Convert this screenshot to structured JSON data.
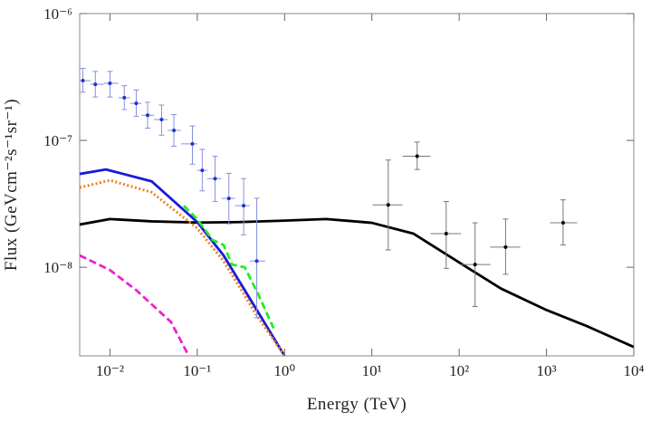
{
  "chart_data": {
    "type": "line",
    "x_label": "Energy (TeV)",
    "y_label": "Flux (GeVcm⁻²s⁻¹sr⁻¹)",
    "xscale": "log",
    "yscale": "log",
    "xlim": [
      0.0045,
      10000
    ],
    "ylim": [
      2e-09,
      1e-06
    ],
    "xticks": [
      {
        "value": 0.01,
        "label": "10⁻²"
      },
      {
        "value": 0.1,
        "label": "10⁻¹"
      },
      {
        "value": 1,
        "label": "10⁰"
      },
      {
        "value": 10,
        "label": "10¹"
      },
      {
        "value": 100,
        "label": "10²"
      },
      {
        "value": 1000,
        "label": "10³"
      },
      {
        "value": 10000,
        "label": "10⁴"
      }
    ],
    "yticks": [
      {
        "value": 1e-08,
        "label": "10⁻⁸"
      },
      {
        "value": 1e-07,
        "label": "10⁻⁷"
      },
      {
        "value": 1e-06,
        "label": "10⁻⁶"
      }
    ],
    "grid": false,
    "series": [
      {
        "color": "#000000",
        "style": "solid",
        "x": [
          0.0045,
          0.01,
          0.03,
          0.1,
          0.3,
          1,
          3,
          10,
          30,
          100,
          300,
          1000,
          3000,
          10000
        ],
        "values": [
          2.17e-08,
          2.4e-08,
          2.3e-08,
          2.25e-08,
          2.27e-08,
          2.33e-08,
          2.4e-08,
          2.24e-08,
          1.84e-08,
          1.09e-08,
          6.8e-09,
          4.6e-09,
          3.4e-09,
          2.35e-09
        ]
      },
      {
        "color": "#1a1ad8",
        "style": "solid",
        "x": [
          0.0045,
          0.009,
          0.03,
          0.1,
          0.2,
          0.5,
          1
        ],
        "values": [
          5.44e-08,
          5.9e-08,
          4.76e-08,
          2.27e-08,
          1.24e-08,
          4.4e-09,
          2e-09
        ]
      },
      {
        "color": "#f08020",
        "style": "dotted",
        "x": [
          0.0045,
          0.01,
          0.03,
          0.1,
          0.2,
          0.5,
          1
        ],
        "values": [
          4.25e-08,
          4.85e-08,
          3.9e-08,
          2.03e-08,
          1.12e-08,
          4e-09,
          2e-09
        ]
      },
      {
        "color": "#22ee22",
        "style": "dashed",
        "x": [
          0.07,
          0.1,
          0.15,
          0.2,
          0.25,
          0.35,
          0.5,
          0.75
        ],
        "values": [
          3.06e-08,
          2.39e-08,
          1.64e-08,
          1.5e-08,
          1.05e-08,
          1e-08,
          6.1e-09,
          3.3e-09
        ]
      },
      {
        "color": "#ee22cc",
        "style": "dashed",
        "x": [
          0.0045,
          0.01,
          0.02,
          0.05,
          0.08
        ],
        "values": [
          1.24e-08,
          9.5e-09,
          6.6e-09,
          3.7e-09,
          2e-09
        ]
      },
      {
        "color": "#2233cc",
        "style": "errorbar",
        "x": [
          0.0049,
          0.0068,
          0.01,
          0.0146,
          0.02,
          0.027,
          0.039,
          0.054,
          0.088,
          0.114,
          0.16,
          0.23,
          0.34,
          0.48
        ],
        "values": [
          2.96e-07,
          2.77e-07,
          2.82e-07,
          2.17e-07,
          1.96e-07,
          1.58e-07,
          1.46e-07,
          1.2e-07,
          9.4e-08,
          5.8e-08,
          5e-08,
          3.49e-08,
          3.06e-08,
          1.12e-08
        ],
        "x_low": [
          0.0045,
          0.006,
          0.0085,
          0.0125,
          0.017,
          0.023,
          0.032,
          0.046,
          0.065,
          0.1,
          0.13,
          0.19,
          0.27,
          0.4
        ],
        "x_high": [
          0.006,
          0.0085,
          0.0125,
          0.017,
          0.023,
          0.032,
          0.046,
          0.065,
          0.1,
          0.13,
          0.19,
          0.27,
          0.4,
          0.6
        ],
        "y_low": [
          2.4e-07,
          2.2e-07,
          2.2e-07,
          1.75e-07,
          1.55e-07,
          1.25e-07,
          1.1e-07,
          9e-08,
          6.5e-08,
          4e-08,
          3.3e-08,
          2.2e-08,
          1.8e-08,
          4e-09
        ],
        "y_high": [
          3.7e-07,
          3.5e-07,
          3.5e-07,
          2.7e-07,
          2.5e-07,
          2e-07,
          1.9e-07,
          1.6e-07,
          1.3e-07,
          8.5e-08,
          7.5e-08,
          5.5e-08,
          5e-08,
          3.5e-08
        ]
      },
      {
        "color": "#000000",
        "style": "errorbar",
        "x": [
          15.4,
          33,
          71,
          152,
          340,
          1550
        ],
        "values": [
          3.1e-08,
          7.5e-08,
          1.84e-08,
          1.05e-08,
          1.44e-08,
          2.24e-08
        ],
        "x_low": [
          10.2,
          22.5,
          47,
          105,
          227,
          1100
        ],
        "x_high": [
          22.5,
          47,
          105,
          227,
          500,
          2250
        ],
        "y_low": [
          1.37e-08,
          5.9e-08,
          9.8e-09,
          4.9e-09,
          8.8e-09,
          1.5e-08
        ],
        "y_high": [
          7e-08,
          9.7e-08,
          3.3e-08,
          2.24e-08,
          2.4e-08,
          3.4e-08
        ]
      }
    ]
  }
}
